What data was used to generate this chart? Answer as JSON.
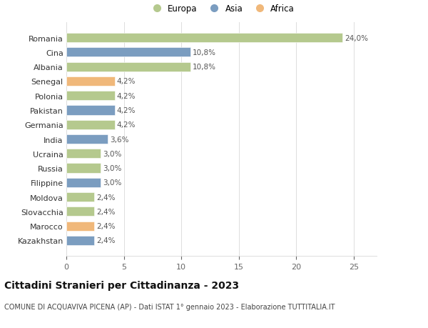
{
  "categories": [
    "Kazakhstan",
    "Marocco",
    "Slovacchia",
    "Moldova",
    "Filippine",
    "Russia",
    "Ucraina",
    "India",
    "Germania",
    "Pakistan",
    "Polonia",
    "Senegal",
    "Albania",
    "Cina",
    "Romania"
  ],
  "values": [
    2.4,
    2.4,
    2.4,
    2.4,
    3.0,
    3.0,
    3.0,
    3.6,
    4.2,
    4.2,
    4.2,
    4.2,
    10.8,
    10.8,
    24.0
  ],
  "labels": [
    "2,4%",
    "2,4%",
    "2,4%",
    "2,4%",
    "3,0%",
    "3,0%",
    "3,0%",
    "3,6%",
    "4,2%",
    "4,2%",
    "4,2%",
    "4,2%",
    "10,8%",
    "10,8%",
    "24,0%"
  ],
  "continent": [
    "Asia",
    "Africa",
    "Europa",
    "Europa",
    "Asia",
    "Europa",
    "Europa",
    "Asia",
    "Europa",
    "Asia",
    "Europa",
    "Africa",
    "Europa",
    "Asia",
    "Europa"
  ],
  "colors": {
    "Europa": "#b5c98e",
    "Asia": "#7b9dc0",
    "Africa": "#f0b87a"
  },
  "title": "Cittadini Stranieri per Cittadinanza - 2023",
  "subtitle": "COMUNE DI ACQUAVIVA PICENA (AP) - Dati ISTAT 1° gennaio 2023 - Elaborazione TUTTITALIA.IT",
  "xlim": [
    0,
    27
  ],
  "xticks": [
    0,
    5,
    10,
    15,
    20,
    25
  ],
  "background_color": "#ffffff",
  "grid_color": "#dddddd",
  "bar_height": 0.65,
  "label_fontsize": 7.5,
  "title_fontsize": 10,
  "subtitle_fontsize": 7,
  "tick_fontsize": 8,
  "legend_fontsize": 8.5
}
